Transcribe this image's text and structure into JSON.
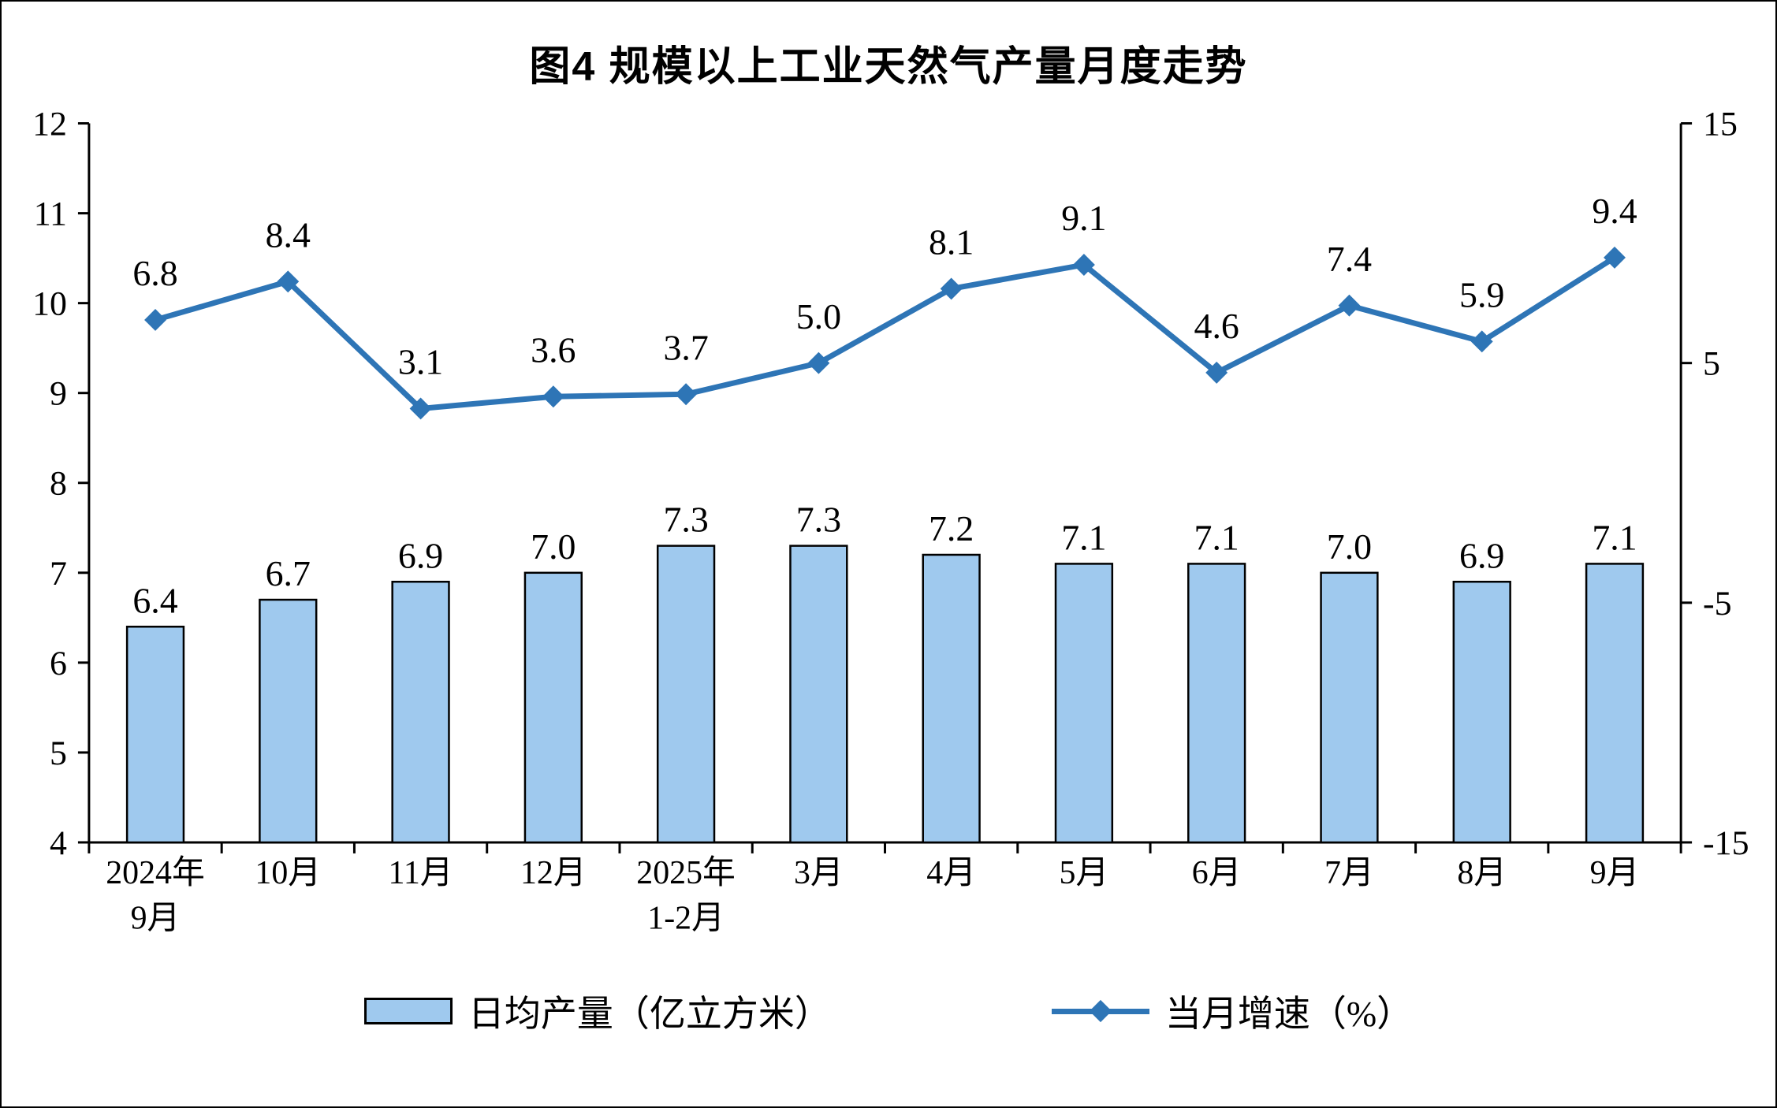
{
  "title": "图4  规模以上工业天然气产量月度走势",
  "chart_data": {
    "type": "combo",
    "categories": [
      [
        "2024年",
        "9月"
      ],
      [
        "10月"
      ],
      [
        "11月"
      ],
      [
        "12月"
      ],
      [
        "2025年",
        "1-2月"
      ],
      [
        "3月"
      ],
      [
        "4月"
      ],
      [
        "5月"
      ],
      [
        "6月"
      ],
      [
        "7月"
      ],
      [
        "8月"
      ],
      [
        "9月"
      ]
    ],
    "series": [
      {
        "name": "日均产量（亿立方米）",
        "type": "bar",
        "axis": "left",
        "values": [
          6.4,
          6.7,
          6.9,
          7.0,
          7.3,
          7.3,
          7.2,
          7.1,
          7.1,
          7.0,
          6.9,
          7.1
        ]
      },
      {
        "name": "当月增速（%）",
        "type": "line",
        "axis": "right",
        "values": [
          6.8,
          8.4,
          3.1,
          3.6,
          3.7,
          5.0,
          8.1,
          9.1,
          4.6,
          7.4,
          5.9,
          9.4
        ]
      }
    ],
    "left_axis": {
      "min": 4,
      "max": 12,
      "ticks": [
        12,
        11,
        10,
        9,
        8,
        7,
        6,
        5,
        4
      ]
    },
    "right_axis": {
      "min": -15,
      "max": 15,
      "ticks": [
        15,
        5,
        -5,
        -15
      ]
    },
    "grid": false,
    "legend_position": "bottom",
    "colors": {
      "bar_fill": "#9FC9EE",
      "bar_border": "#000000",
      "line": "#2E75B6",
      "axis": "#000000",
      "text": "#000000",
      "background": "#FFFFFF"
    }
  }
}
